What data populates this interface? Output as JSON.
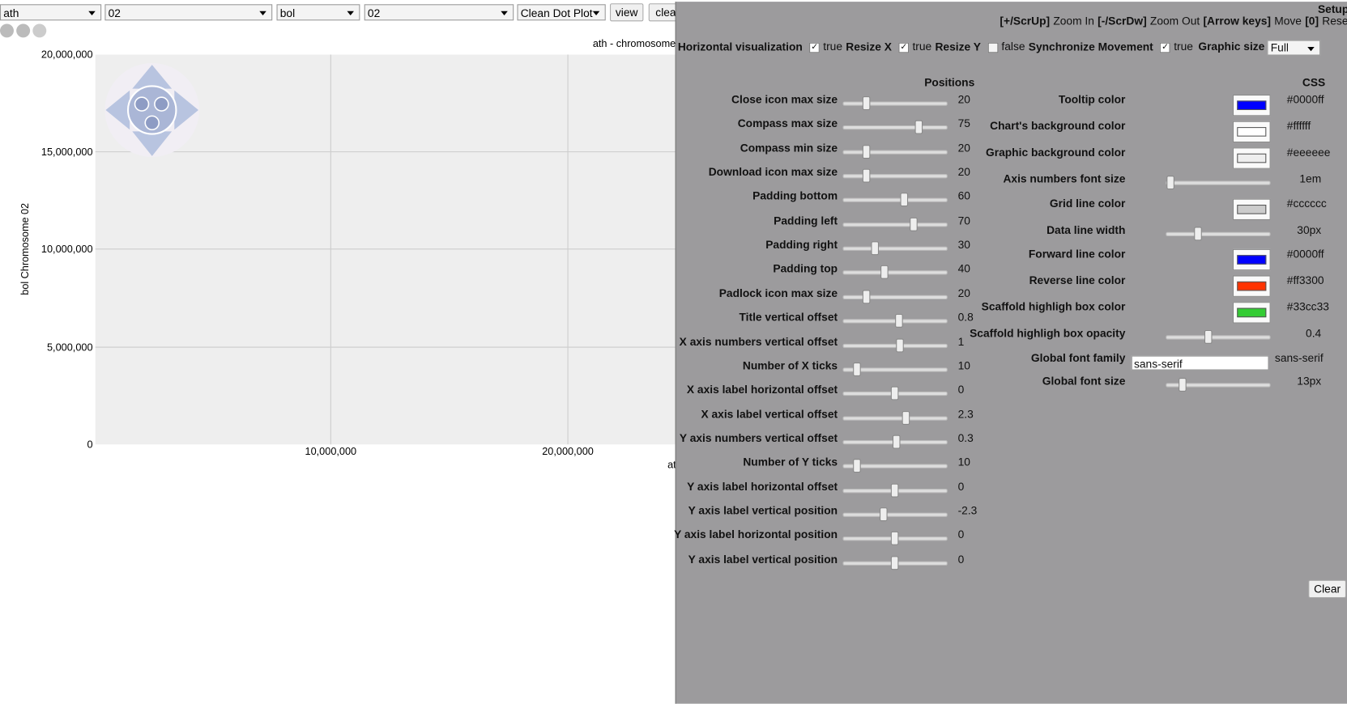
{
  "toolbar": {
    "selects": [
      "ath",
      "02",
      "bol",
      "02",
      "Clean Dot Plot"
    ],
    "buttons": [
      "view",
      "clea"
    ]
  },
  "plot": {
    "title": "ath - chromosome",
    "x_label": "at",
    "y_label": "bol Chromosome 02",
    "y_ticks": [
      "20,000,000",
      "15,000,000",
      "10,000,000",
      "5,000,000",
      "0"
    ],
    "x_ticks": [
      "10,000,000",
      "20,000,000"
    ]
  },
  "setup": {
    "title": "Setup",
    "shortcuts": [
      {
        "key": "[+/ScrUp]",
        "action": "Zoom In"
      },
      {
        "key": "[-/ScrDw]",
        "action": "Zoom Out"
      },
      {
        "key": "[Arrow keys]",
        "action": "Move"
      },
      {
        "key": "[0]",
        "action": "Reset"
      }
    ],
    "options": [
      {
        "label": "Horizontal visualization",
        "state": "true"
      },
      {
        "label": "Resize X",
        "state": "true"
      },
      {
        "label": "Resize Y",
        "state": "false"
      },
      {
        "label": "Synchronize Movement",
        "state": "true"
      }
    ],
    "graphic_size": {
      "label": "Graphic size",
      "value": "Full"
    },
    "positions": {
      "heading": "Positions",
      "rows": [
        {
          "label": "Close icon max size",
          "value": "20"
        },
        {
          "label": "Compass max size",
          "value": "75"
        },
        {
          "label": "Compass min size",
          "value": "20"
        },
        {
          "label": "Download icon max size",
          "value": "20"
        },
        {
          "label": "Padding bottom",
          "value": "60"
        },
        {
          "label": "Padding left",
          "value": "70"
        },
        {
          "label": "Padding right",
          "value": "30"
        },
        {
          "label": "Padding top",
          "value": "40"
        },
        {
          "label": "Padlock icon max size",
          "value": "20"
        },
        {
          "label": "Title vertical offset",
          "value": "0.8"
        },
        {
          "label": "X axis numbers vertical offset",
          "value": "1"
        },
        {
          "label": "Number of X ticks",
          "value": "10"
        },
        {
          "label": "X axis label horizontal offset",
          "value": "0"
        },
        {
          "label": "X axis label vertical offset",
          "value": "2.3"
        },
        {
          "label": "Y axis numbers vertical offset",
          "value": "0.3"
        },
        {
          "label": "Number of Y ticks",
          "value": "10"
        },
        {
          "label": "Y axis label horizontal offset",
          "value": "0"
        },
        {
          "label": "Y axis label vertical position",
          "value": "-2.3"
        },
        {
          "label": "Y axis label horizontal position",
          "value": "0"
        },
        {
          "label": "Y axis label vertical position",
          "value": "0"
        }
      ]
    },
    "css": {
      "heading": "CSS",
      "rows": [
        {
          "label": "Tooltip color",
          "value": "#0000ff",
          "control": "color"
        },
        {
          "label": "Chart's background color",
          "value": "#ffffff",
          "control": "color"
        },
        {
          "label": "Graphic background color",
          "value": "#eeeeee",
          "control": "color"
        },
        {
          "label": "Axis numbers font size",
          "value": "1em",
          "control": "slider"
        },
        {
          "label": "Grid line color",
          "value": "#cccccc",
          "control": "color"
        },
        {
          "label": "Data line width",
          "value": "30px",
          "control": "slider"
        },
        {
          "label": "Forward line color",
          "value": "#0000ff",
          "control": "color"
        },
        {
          "label": "Reverse line color",
          "value": "#ff3300",
          "control": "color"
        },
        {
          "label": "Scaffold highligh box color",
          "value": "#33cc33",
          "control": "color"
        },
        {
          "label": "Scaffold highligh box opacity",
          "value": "0.4",
          "control": "slider"
        },
        {
          "label": "Global font family",
          "value": "sans-serif",
          "control": "text"
        },
        {
          "label": "Global font size",
          "value": "13px",
          "control": "slider"
        }
      ]
    },
    "clear": "Clear"
  }
}
